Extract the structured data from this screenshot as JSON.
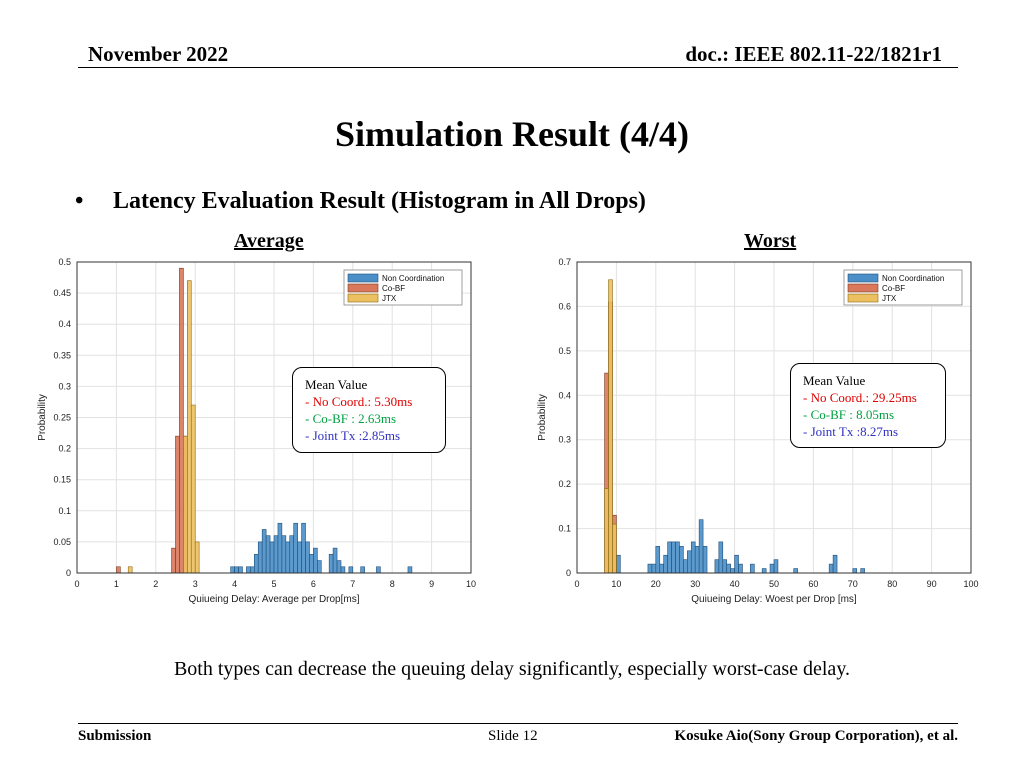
{
  "header": {
    "date": "November 2022",
    "doc": "doc.: IEEE 802.11-22/1821r1"
  },
  "slide": {
    "title": "Simulation Result (4/4)",
    "bullet": "Latency Evaluation Result (Histogram in All Drops)",
    "caption": "Both types can decrease the queuing delay significantly, especially worst-case delay."
  },
  "footer": {
    "left": "Submission",
    "center": "Slide 12",
    "right": "Kosuke Aio(Sony Group Corporation), et al."
  },
  "colors": {
    "non_coordination": "#4a8fc8",
    "co_bf": "#d9785a",
    "jtx": "#ecc060"
  },
  "chart_data": [
    {
      "type": "bar",
      "panel_title": "Average",
      "xlabel": "Quiueing Delay: Average per Drop[ms]",
      "ylabel": "Probability",
      "xlim": [
        0,
        10
      ],
      "ylim": [
        0,
        0.5
      ],
      "xticks": [
        "0",
        "1",
        "2",
        "3",
        "4",
        "5",
        "6",
        "7",
        "8",
        "9",
        "10"
      ],
      "yticks": [
        "0",
        "0.05",
        "0.1",
        "0.15",
        "0.2",
        "0.25",
        "0.3",
        "0.35",
        "0.4",
        "0.45",
        "0.5"
      ],
      "bin_width": 0.1,
      "grid": true,
      "legend_position": "top-right",
      "series": [
        {
          "name": "Non Coordination",
          "bins": [
            [
              3.9,
              0.01
            ],
            [
              4.0,
              0.01
            ],
            [
              4.1,
              0.01
            ],
            [
              4.3,
              0.01
            ],
            [
              4.4,
              0.01
            ],
            [
              4.5,
              0.03
            ],
            [
              4.6,
              0.05
            ],
            [
              4.7,
              0.07
            ],
            [
              4.8,
              0.06
            ],
            [
              4.9,
              0.05
            ],
            [
              5.0,
              0.06
            ],
            [
              5.1,
              0.08
            ],
            [
              5.2,
              0.06
            ],
            [
              5.3,
              0.05
            ],
            [
              5.4,
              0.06
            ],
            [
              5.5,
              0.08
            ],
            [
              5.6,
              0.05
            ],
            [
              5.7,
              0.08
            ],
            [
              5.8,
              0.05
            ],
            [
              5.9,
              0.03
            ],
            [
              6.0,
              0.04
            ],
            [
              6.1,
              0.02
            ],
            [
              6.4,
              0.03
            ],
            [
              6.5,
              0.04
            ],
            [
              6.6,
              0.02
            ],
            [
              6.7,
              0.01
            ],
            [
              6.9,
              0.01
            ],
            [
              7.2,
              0.01
            ],
            [
              7.6,
              0.01
            ],
            [
              8.4,
              0.01
            ]
          ]
        },
        {
          "name": "Co-BF",
          "bins": [
            [
              1.0,
              0.01
            ],
            [
              2.4,
              0.04
            ],
            [
              2.5,
              0.22
            ],
            [
              2.6,
              0.49
            ],
            [
              2.7,
              0.22
            ]
          ]
        },
        {
          "name": "JTX",
          "bins": [
            [
              1.3,
              0.01
            ],
            [
              2.7,
              0.22
            ],
            [
              2.8,
              0.47
            ],
            [
              2.9,
              0.27
            ],
            [
              3.0,
              0.05
            ]
          ]
        }
      ],
      "annotation": {
        "heading": "Mean Value",
        "lines": [
          "- No Coord.: 5.30ms",
          "- Co-BF  : 2.63ms",
          "- Joint Tx :2.85ms"
        ]
      }
    },
    {
      "type": "bar",
      "panel_title": "Worst",
      "xlabel": "Quiueing Delay: Woest per Drop [ms]",
      "ylabel": "Probability",
      "xlim": [
        0,
        100
      ],
      "ylim": [
        0,
        0.7
      ],
      "xticks": [
        "0",
        "10",
        "20",
        "30",
        "40",
        "50",
        "60",
        "70",
        "80",
        "90",
        "100"
      ],
      "yticks": [
        "0",
        "0.1",
        "0.2",
        "0.3",
        "0.4",
        "0.5",
        "0.6",
        "0.7"
      ],
      "bin_width": 1,
      "grid": true,
      "legend_position": "top-right",
      "series": [
        {
          "name": "Non Coordination",
          "bins": [
            [
              10,
              0.04
            ],
            [
              18,
              0.02
            ],
            [
              19,
              0.02
            ],
            [
              20,
              0.06
            ],
            [
              21,
              0.02
            ],
            [
              22,
              0.04
            ],
            [
              23,
              0.07
            ],
            [
              24,
              0.07
            ],
            [
              25,
              0.07
            ],
            [
              26,
              0.06
            ],
            [
              27,
              0.03
            ],
            [
              28,
              0.05
            ],
            [
              29,
              0.07
            ],
            [
              30,
              0.06
            ],
            [
              31,
              0.12
            ],
            [
              32,
              0.06
            ],
            [
              35,
              0.03
            ],
            [
              36,
              0.07
            ],
            [
              37,
              0.03
            ],
            [
              38,
              0.02
            ],
            [
              39,
              0.01
            ],
            [
              40,
              0.04
            ],
            [
              41,
              0.02
            ],
            [
              44,
              0.02
            ],
            [
              47,
              0.01
            ],
            [
              49,
              0.02
            ],
            [
              50,
              0.03
            ],
            [
              55,
              0.01
            ],
            [
              64,
              0.02
            ],
            [
              65,
              0.04
            ],
            [
              70,
              0.01
            ],
            [
              72,
              0.01
            ]
          ]
        },
        {
          "name": "Co-BF",
          "bins": [
            [
              7,
              0.45
            ],
            [
              8,
              0.61
            ],
            [
              9,
              0.13
            ]
          ]
        },
        {
          "name": "JTX",
          "bins": [
            [
              7,
              0.19
            ],
            [
              8,
              0.66
            ],
            [
              9,
              0.11
            ]
          ]
        }
      ],
      "annotation": {
        "heading": "Mean Value",
        "lines": [
          "- No Coord.: 29.25ms",
          "- Co-BF  : 8.05ms",
          "- Joint Tx :8.27ms"
        ]
      }
    }
  ]
}
